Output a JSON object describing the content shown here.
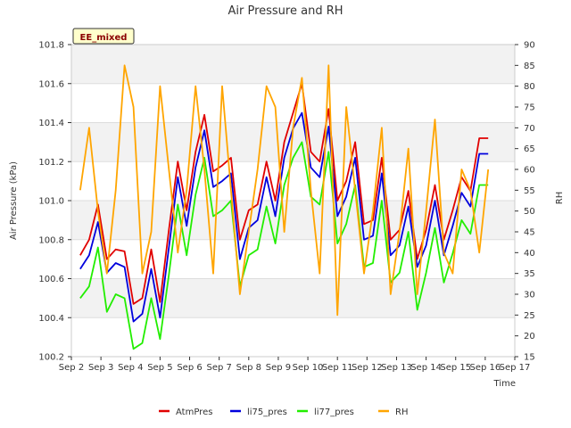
{
  "chart_data": {
    "type": "line",
    "title": "Air Pressure and RH",
    "xlabel": "Time",
    "ylabel": "Air Pressure (kPa)",
    "y2label": "RH",
    "badge": "EE_mixed",
    "x_ticks": [
      "Sep 2",
      "Sep 3",
      "Sep 4",
      "Sep 5",
      "Sep 6",
      "Sep 7",
      "Sep 8",
      "Sep 9",
      "Sep 10",
      "Sep 11",
      "Sep 12",
      "Sep 13",
      "Sep 14",
      "Sep 15",
      "Sep 16",
      "Sep 17"
    ],
    "xlim": [
      2,
      17
    ],
    "ylim": [
      100.2,
      101.8
    ],
    "y_ticks": [
      "100.2",
      "100.4",
      "100.6",
      "100.8",
      "101.0",
      "101.2",
      "101.4",
      "101.6",
      "101.8"
    ],
    "y2lim": [
      15,
      90
    ],
    "y2_ticks": [
      "15",
      "20",
      "25",
      "30",
      "35",
      "40",
      "45",
      "50",
      "55",
      "60",
      "65",
      "70",
      "75",
      "80",
      "85",
      "90"
    ],
    "grid": true,
    "legend_position": "bottom",
    "x": [
      2.3,
      2.6,
      2.9,
      3.2,
      3.5,
      3.8,
      4.1,
      4.4,
      4.7,
      5.0,
      5.3,
      5.6,
      5.9,
      6.2,
      6.5,
      6.8,
      7.1,
      7.4,
      7.7,
      8.0,
      8.3,
      8.6,
      8.9,
      9.2,
      9.5,
      9.8,
      10.1,
      10.4,
      10.7,
      11.0,
      11.3,
      11.6,
      11.9,
      12.2,
      12.5,
      12.8,
      13.1,
      13.4,
      13.7,
      14.0,
      14.3,
      14.6,
      14.9,
      15.2,
      15.5,
      15.8,
      16.1
    ],
    "series": [
      {
        "name": "AtmPres",
        "color": "#e00000",
        "axis": "left",
        "values": [
          100.72,
          100.8,
          100.98,
          100.7,
          100.75,
          100.74,
          100.47,
          100.5,
          100.75,
          100.48,
          100.85,
          101.2,
          100.95,
          101.25,
          101.44,
          101.15,
          101.18,
          101.22,
          100.8,
          100.95,
          100.98,
          101.2,
          101.0,
          101.3,
          101.45,
          101.6,
          101.25,
          101.2,
          101.47,
          101.0,
          101.1,
          101.3,
          100.88,
          100.9,
          101.22,
          100.8,
          100.85,
          101.05,
          100.7,
          100.85,
          101.08,
          100.8,
          100.95,
          101.12,
          101.05,
          101.32,
          101.32
        ]
      },
      {
        "name": "li75_pres",
        "color": "#0000dd",
        "axis": "left",
        "values": [
          100.65,
          100.72,
          100.89,
          100.63,
          100.68,
          100.66,
          100.38,
          100.42,
          100.65,
          100.4,
          100.76,
          101.12,
          100.87,
          101.17,
          101.36,
          101.07,
          101.1,
          101.14,
          100.7,
          100.86,
          100.9,
          101.12,
          100.92,
          101.22,
          101.37,
          101.45,
          101.17,
          101.12,
          101.38,
          100.92,
          101.02,
          101.22,
          100.8,
          100.82,
          101.14,
          100.72,
          100.77,
          100.97,
          100.66,
          100.77,
          101.0,
          100.72,
          100.87,
          101.04,
          100.97,
          101.24,
          101.24
        ]
      },
      {
        "name": "li77_pres",
        "color": "#22ee00",
        "axis": "left",
        "values": [
          100.5,
          100.56,
          100.76,
          100.43,
          100.52,
          100.5,
          100.24,
          100.27,
          100.5,
          100.29,
          100.62,
          100.98,
          100.72,
          101.03,
          101.22,
          100.92,
          100.95,
          101.0,
          100.56,
          100.72,
          100.75,
          100.97,
          100.78,
          101.08,
          101.22,
          101.3,
          101.02,
          100.98,
          101.25,
          100.78,
          100.88,
          101.08,
          100.66,
          100.68,
          101.0,
          100.58,
          100.63,
          100.84,
          100.44,
          100.63,
          100.86,
          100.58,
          100.73,
          100.9,
          100.83,
          101.08,
          101.08
        ]
      },
      {
        "name": "RH",
        "color": "#ffa500",
        "axis": "right",
        "values": [
          55,
          70,
          50,
          35,
          55,
          85,
          75,
          35,
          45,
          80,
          60,
          40,
          55,
          80,
          60,
          35,
          80,
          55,
          30,
          45,
          60,
          80,
          75,
          45,
          70,
          82,
          55,
          35,
          85,
          25,
          75,
          55,
          35,
          50,
          70,
          30,
          45,
          65,
          30,
          50,
          72,
          40,
          35,
          60,
          55,
          40,
          60
        ]
      }
    ]
  }
}
